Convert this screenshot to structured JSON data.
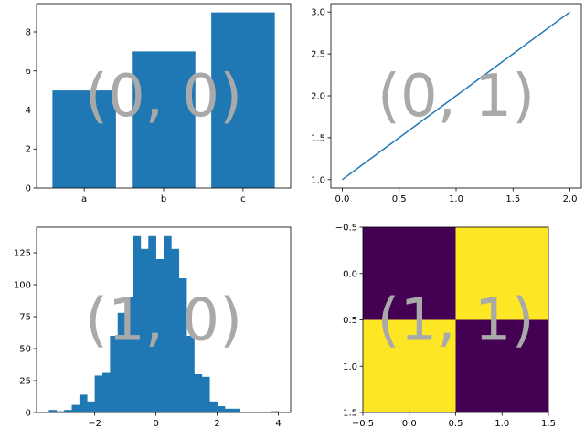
{
  "chart_data": [
    {
      "type": "bar",
      "panel_label": "(0, 0)",
      "categories": [
        "a",
        "b",
        "c"
      ],
      "values": [
        5,
        7,
        9
      ],
      "ylim": [
        0,
        9.45
      ],
      "yticks": [
        0,
        2,
        4,
        6,
        8
      ],
      "color": "#1f77b4",
      "title": "",
      "xlabel": "",
      "ylabel": ""
    },
    {
      "type": "line",
      "panel_label": "(0, 1)",
      "x": [
        0,
        1,
        2
      ],
      "y": [
        1,
        2,
        3
      ],
      "xlim": [
        -0.1,
        2.1
      ],
      "ylim": [
        0.9,
        3.1
      ],
      "xticks": [
        0.0,
        0.5,
        1.0,
        1.5,
        2.0
      ],
      "yticks": [
        1.0,
        1.5,
        2.0,
        2.5,
        3.0
      ],
      "color": "#1f77b4",
      "title": "",
      "xlabel": "",
      "ylabel": ""
    },
    {
      "type": "bar",
      "subtype": "histogram",
      "panel_label": "(1, 0)",
      "bin_edges": [
        -3.5,
        -3.25,
        -3.0,
        -2.75,
        -2.5,
        -2.25,
        -2.0,
        -1.75,
        -1.5,
        -1.25,
        -1.0,
        -0.75,
        -0.5,
        -0.25,
        0.0,
        0.25,
        0.5,
        0.75,
        1.0,
        1.25,
        1.5,
        1.75,
        2.0,
        2.25,
        2.5,
        2.75,
        3.0,
        3.25,
        3.5,
        3.75,
        4.0
      ],
      "counts": [
        2,
        1,
        2,
        6,
        14,
        8,
        29,
        31,
        60,
        78,
        90,
        138,
        128,
        138,
        120,
        138,
        128,
        105,
        60,
        30,
        28,
        8,
        5,
        3,
        3,
        0,
        0,
        0,
        0,
        1
      ],
      "xlim": [
        -3.9,
        4.4
      ],
      "ylim": [
        0,
        145
      ],
      "xticks": [
        -2,
        0,
        2,
        4
      ],
      "xtick_labels": [
        "−2",
        "0",
        "2",
        "4"
      ],
      "yticks": [
        0,
        25,
        50,
        75,
        100,
        125
      ],
      "color": "#1f77b4",
      "title": "",
      "xlabel": "",
      "ylabel": ""
    },
    {
      "type": "heatmap",
      "panel_label": "(1, 1)",
      "matrix": [
        [
          0,
          1
        ],
        [
          1,
          0
        ]
      ],
      "colors": [
        "#440154",
        "#fde725"
      ],
      "xlim": [
        -0.5,
        1.5
      ],
      "ylim": [
        1.5,
        -0.5
      ],
      "xticks": [
        -0.5,
        0.0,
        0.5,
        1.0,
        1.5
      ],
      "xtick_labels": [
        "−0.5",
        "0.0",
        "0.5",
        "1.0",
        "1.5"
      ],
      "yticks": [
        -0.5,
        0.0,
        0.5,
        1.0,
        1.5
      ],
      "ytick_labels": [
        "−0.5",
        "0.0",
        "0.5",
        "1.0",
        "1.5"
      ],
      "title": "",
      "xlabel": "",
      "ylabel": ""
    }
  ]
}
